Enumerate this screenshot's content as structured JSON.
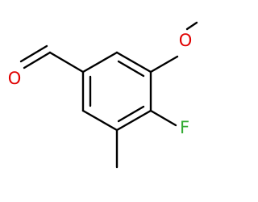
{
  "atoms": [
    {
      "label": "O"
    },
    {
      "label": "O"
    },
    {
      "label": "F"
    }
  ]
}
